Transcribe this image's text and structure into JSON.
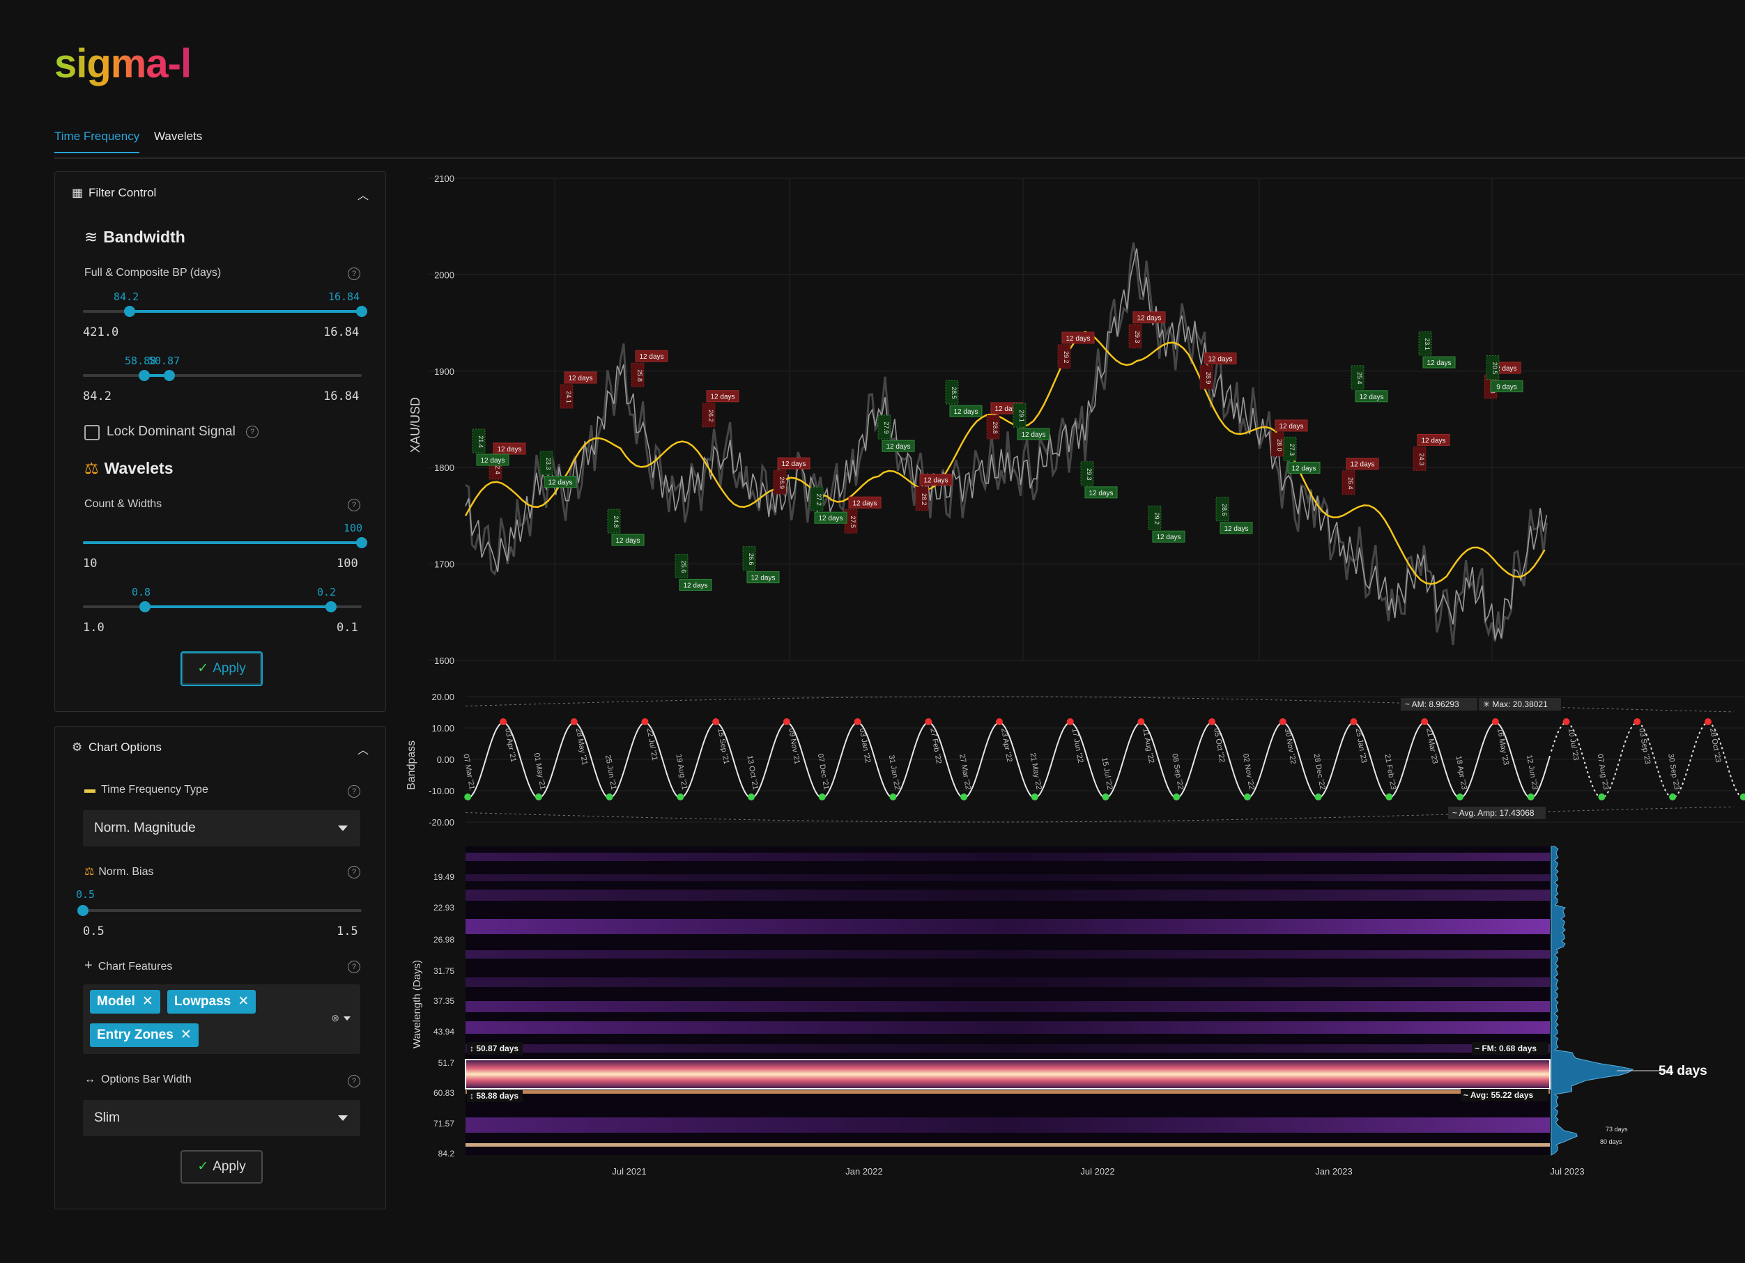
{
  "brand": {
    "logo": "sigma-l"
  },
  "tabs": [
    {
      "label": "Time Frequency",
      "active": true
    },
    {
      "label": "Wavelets",
      "active": false
    }
  ],
  "filter_control": {
    "title": "Filter Control",
    "bandwidth": {
      "title": "Bandwidth",
      "label": "Full & Composite BP (days)",
      "slider1": {
        "value_low": "84.2",
        "value_high": "16.84",
        "min": "421.0",
        "max": "16.84",
        "low_frac": 0.168,
        "high_frac": 1.0
      },
      "slider2": {
        "value_low": "58.88",
        "value_high": "50.87",
        "min": "84.2",
        "max": "16.84",
        "low_frac": 0.22,
        "high_frac": 0.31
      }
    },
    "lock_label": "Lock Dominant Signal",
    "lock_checked": false,
    "wavelets": {
      "title": "Wavelets",
      "label": "Count & Widths",
      "slider1": {
        "value": "100",
        "min": "10",
        "max": "100",
        "frac": 1.0
      },
      "slider2": {
        "value_low": "0.8",
        "value_high": "0.2",
        "min": "1.0",
        "max": "0.1",
        "low_frac": 0.222,
        "high_frac": 0.889
      }
    },
    "apply_label": "Apply"
  },
  "chart_options": {
    "title": "Chart Options",
    "tf_type_label": "Time Frequency Type",
    "tf_type_value": "Norm. Magnitude",
    "norm_bias_label": "Norm. Bias",
    "norm_bias": {
      "value": "0.5",
      "min": "0.5",
      "max": "1.5",
      "frac": 0.0
    },
    "features_label": "Chart Features",
    "features": [
      "Model",
      "Lowpass",
      "Entry Zones"
    ],
    "bar_width_label": "Options Bar Width",
    "bar_width_value": "Slim",
    "apply_label": "Apply"
  },
  "chart_data": [
    {
      "type": "line",
      "ylabel": "XAU/USD",
      "y_ticks": [
        1600,
        1700,
        1800,
        1900,
        2000,
        2100
      ],
      "ylim": [
        1600,
        2100
      ],
      "x_ticks": [
        "Jul 2021",
        "Jan 2022",
        "Jul 2022",
        "Jan 2023",
        "Jul 2023"
      ],
      "price_series": {
        "x": [
          0,
          3,
          6,
          9,
          12,
          15,
          18,
          21,
          24,
          27,
          30,
          33,
          36,
          39,
          42,
          45,
          48,
          51,
          54,
          57,
          60,
          63,
          66,
          69,
          72,
          75,
          78,
          81,
          84,
          87,
          90,
          93,
          96,
          99,
          102,
          105,
          108,
          111,
          114,
          117,
          120,
          123,
          126
        ],
        "y": [
          1760,
          1700,
          1730,
          1795,
          1780,
          1830,
          1900,
          1820,
          1765,
          1790,
          1820,
          1785,
          1760,
          1790,
          1760,
          1800,
          1870,
          1810,
          1775,
          1780,
          1790,
          1805,
          1795,
          1830,
          1840,
          1935,
          2010,
          1930,
          1950,
          1890,
          1860,
          1830,
          1770,
          1755,
          1720,
          1690,
          1660,
          1700,
          1645,
          1680,
          1630,
          1710,
          1760
        ]
      },
      "lowpass_series": {
        "x": [
          0,
          6,
          12,
          18,
          24,
          30,
          36,
          42,
          48,
          54,
          60,
          66,
          72,
          78,
          84,
          90,
          96,
          102,
          108,
          114,
          120,
          126
        ],
        "y": [
          1750,
          1775,
          1790,
          1830,
          1810,
          1790,
          1760,
          1790,
          1770,
          1800,
          1830,
          1870,
          1920,
          1930,
          1900,
          1850,
          1800,
          1760,
          1720,
          1690,
          1700,
          1720
        ]
      },
      "markers_peak": [
        {
          "label": "12 days",
          "sub": "22.4"
        },
        {
          "label": "12 days",
          "sub": "24.1"
        },
        {
          "label": "12 days",
          "sub": "25.8"
        },
        {
          "label": "12 days",
          "sub": "26.2"
        },
        {
          "label": "12 days",
          "sub": "26.9"
        },
        {
          "label": "12 days",
          "sub": "27.5"
        },
        {
          "label": "12 days",
          "sub": "28.2"
        },
        {
          "label": "12 days",
          "sub": "28.8"
        },
        {
          "label": "12 days",
          "sub": "29.2"
        },
        {
          "label": "12 days",
          "sub": "29.3"
        },
        {
          "label": "12 days",
          "sub": "28.9"
        },
        {
          "label": "12 days",
          "sub": "28.0"
        },
        {
          "label": "12 days",
          "sub": "26.4"
        },
        {
          "label": "12 days",
          "sub": "24.3"
        },
        {
          "label": "12 days",
          "sub": "21.8"
        }
      ],
      "markers_trough": [
        {
          "label": "12 days",
          "sub": "21.4"
        },
        {
          "label": "12 days",
          "sub": "23.3"
        },
        {
          "label": "12 days",
          "sub": "24.8"
        },
        {
          "label": "12 days",
          "sub": "25.6"
        },
        {
          "label": "12 days",
          "sub": "26.6"
        },
        {
          "label": "12 days",
          "sub": "27.2"
        },
        {
          "label": "12 days",
          "sub": "27.9"
        },
        {
          "label": "12 days",
          "sub": "28.5"
        },
        {
          "label": "12 days",
          "sub": "29.1"
        },
        {
          "label": "12 days",
          "sub": "29.3"
        },
        {
          "label": "12 days",
          "sub": "29.2"
        },
        {
          "label": "12 days",
          "sub": "28.6"
        },
        {
          "label": "12 days",
          "sub": "27.3"
        },
        {
          "label": "12 days",
          "sub": "25.4"
        },
        {
          "label": "12 days",
          "sub": "23.1"
        },
        {
          "label": "9 days",
          "sub": "20.5"
        }
      ]
    },
    {
      "type": "line",
      "ylabel": "Bandpass",
      "y_ticks": [
        "20.00",
        "10.00",
        "0.00",
        "-10.00",
        "-20.00"
      ],
      "ylim": [
        -20,
        20
      ],
      "date_labels": [
        "07 Mar '21",
        "03 Apr '21",
        "01 May '21",
        "28 May '21",
        "25 Jun '21",
        "22 Jul '21",
        "19 Aug '21",
        "15 Sep '21",
        "13 Oct '21",
        "09 Nov '21",
        "07 Dec '21",
        "03 Jan '22",
        "31 Jan '22",
        "27 Feb '22",
        "27 Mar '22",
        "23 Apr '22",
        "21 May '22",
        "17 Jun '22",
        "15 Jul '22",
        "11 Aug '22",
        "08 Sep '22",
        "05 Oct '22",
        "02 Nov '22",
        "30 Nov '22",
        "28 Dec '22",
        "25 Jan '23",
        "21 Feb '23",
        "21 Mar '23",
        "18 Apr '23",
        "16 May '23",
        "12 Jun '23",
        "10 Jul '23",
        "07 Aug '23",
        "03 Sep '23",
        "30 Sep '23",
        "28 Oct '23"
      ],
      "amplitude": 12,
      "am_label": "AM: 8.96293",
      "max_label": "Max: 20.38021",
      "avg_amp_label": "Avg. Amp: 17.43068"
    },
    {
      "type": "heatmap",
      "ylabel": "Wavelength (Days)",
      "y_ticks": [
        "19.49",
        "22.93",
        "26.98",
        "31.75",
        "37.35",
        "43.94",
        "51.7",
        "60.83",
        "71.57",
        "84.2"
      ],
      "x_ticks": [
        "Jul 2021",
        "Jan 2022",
        "Jul 2022",
        "Jan 2023",
        "Jul 2023"
      ],
      "band_top_label": "50.87 days",
      "band_bottom_label": "58.88 days",
      "fm_label": "FM: 0.68 days",
      "avg_label": "Avg: 55.22 days",
      "peak_label": "54 days",
      "minor_labels": [
        "73 days",
        "80 days"
      ]
    }
  ]
}
